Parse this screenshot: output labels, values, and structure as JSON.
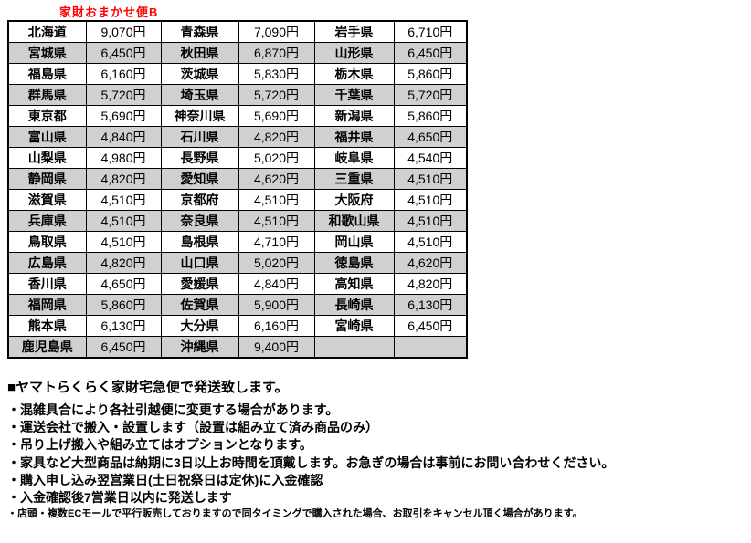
{
  "title": "家財おまかせ便B",
  "colors": {
    "title": "#ff0000",
    "row_shade": "#d0d0d0",
    "border": "#000000"
  },
  "table": {
    "columns": [
      "prefecture",
      "price",
      "prefecture",
      "price",
      "prefecture",
      "price"
    ],
    "rows": [
      {
        "shaded": false,
        "cells": [
          [
            "北海道",
            "9,070円"
          ],
          [
            "青森県",
            "7,090円"
          ],
          [
            "岩手県",
            "6,710円"
          ]
        ]
      },
      {
        "shaded": true,
        "cells": [
          [
            "宮城県",
            "6,450円"
          ],
          [
            "秋田県",
            "6,870円"
          ],
          [
            "山形県",
            "6,450円"
          ]
        ]
      },
      {
        "shaded": false,
        "cells": [
          [
            "福島県",
            "6,160円"
          ],
          [
            "茨城県",
            "5,830円"
          ],
          [
            "栃木県",
            "5,860円"
          ]
        ]
      },
      {
        "shaded": true,
        "cells": [
          [
            "群馬県",
            "5,720円"
          ],
          [
            "埼玉県",
            "5,720円"
          ],
          [
            "千葉県",
            "5,720円"
          ]
        ]
      },
      {
        "shaded": false,
        "cells": [
          [
            "東京都",
            "5,690円"
          ],
          [
            "神奈川県",
            "5,690円"
          ],
          [
            "新潟県",
            "5,860円"
          ]
        ]
      },
      {
        "shaded": true,
        "cells": [
          [
            "富山県",
            "4,840円"
          ],
          [
            "石川県",
            "4,820円"
          ],
          [
            "福井県",
            "4,650円"
          ]
        ]
      },
      {
        "shaded": false,
        "cells": [
          [
            "山梨県",
            "4,980円"
          ],
          [
            "長野県",
            "5,020円"
          ],
          [
            "岐阜県",
            "4,540円"
          ]
        ]
      },
      {
        "shaded": true,
        "cells": [
          [
            "静岡県",
            "4,820円"
          ],
          [
            "愛知県",
            "4,620円"
          ],
          [
            "三重県",
            "4,510円"
          ]
        ]
      },
      {
        "shaded": false,
        "cells": [
          [
            "滋賀県",
            "4,510円"
          ],
          [
            "京都府",
            "4,510円"
          ],
          [
            "大阪府",
            "4,510円"
          ]
        ]
      },
      {
        "shaded": true,
        "cells": [
          [
            "兵庫県",
            "4,510円"
          ],
          [
            "奈良県",
            "4,510円"
          ],
          [
            "和歌山県",
            "4,510円"
          ]
        ]
      },
      {
        "shaded": false,
        "cells": [
          [
            "鳥取県",
            "4,510円"
          ],
          [
            "島根県",
            "4,710円"
          ],
          [
            "岡山県",
            "4,510円"
          ]
        ]
      },
      {
        "shaded": true,
        "cells": [
          [
            "広島県",
            "4,820円"
          ],
          [
            "山口県",
            "5,020円"
          ],
          [
            "徳島県",
            "4,620円"
          ]
        ]
      },
      {
        "shaded": false,
        "cells": [
          [
            "香川県",
            "4,650円"
          ],
          [
            "愛媛県",
            "4,840円"
          ],
          [
            "高知県",
            "4,820円"
          ]
        ]
      },
      {
        "shaded": true,
        "cells": [
          [
            "福岡県",
            "5,860円"
          ],
          [
            "佐賀県",
            "5,900円"
          ],
          [
            "長崎県",
            "6,130円"
          ]
        ]
      },
      {
        "shaded": false,
        "cells": [
          [
            "熊本県",
            "6,130円"
          ],
          [
            "大分県",
            "6,160円"
          ],
          [
            "宮崎県",
            "6,450円"
          ]
        ]
      },
      {
        "shaded": true,
        "cells": [
          [
            "鹿児島県",
            "6,450円"
          ],
          [
            "沖縄県",
            "9,400円"
          ],
          [
            "",
            ""
          ]
        ]
      }
    ]
  },
  "notes": {
    "heading": "■ヤマトらくらく家財宅急便で発送致します。",
    "bullets": [
      "・混雑具合により各社引越便に変更する場合があります。",
      "・運送会社で搬入・設置します（設置は組み立て済み商品のみ）",
      "・吊り上げ搬入や組み立てはオプションとなります。",
      "・家具など大型商品は納期に3日以上お時間を頂戴します。お急ぎの場合は事前にお問い合わせください。",
      "・購入申し込み翌営業日(土日祝祭日は定休)に入金確認",
      "・入金確認後7営業日以内に発送します"
    ],
    "footnote": "・店頭・複数ECモールで平行販売しておりますので同タイミングで購入された場合、お取引をキャンセル頂く場合があります。"
  }
}
